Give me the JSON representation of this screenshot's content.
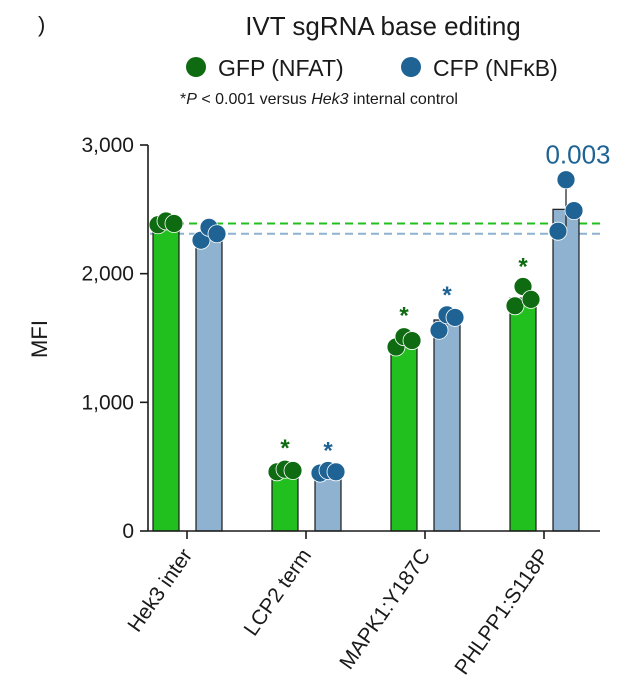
{
  "panel_mark": ")",
  "chart_data": {
    "type": "bar",
    "title": "IVT sgRNA base editing",
    "subtitle_prefix": "*",
    "subtitle_p": "P",
    "subtitle_mid": " < 0.001 versus ",
    "subtitle_gene": "Hek3",
    "subtitle_suffix": " internal control",
    "ylabel": "MFI",
    "xlabel": "",
    "ylim": [
      0,
      3000
    ],
    "yticks": [
      0,
      1000,
      2000,
      3000
    ],
    "ytick_labels": [
      "0",
      "1,000",
      "2,000",
      "3,000"
    ],
    "categories": [
      "Hek3 inter",
      "LCP2 term",
      "MAPK1:Y187C",
      "PHLPP1:S118P"
    ],
    "series": [
      {
        "name": "GFP (NFAT)",
        "color": "#22c01e",
        "dot_color": "#0f6b12",
        "values": [
          2390,
          470,
          1470,
          1810
        ],
        "errors": [
          20,
          20,
          50,
          90
        ],
        "points": [
          [
            2380,
            2410,
            2390
          ],
          [
            460,
            480,
            470
          ],
          [
            1430,
            1510,
            1480
          ],
          [
            1750,
            1900,
            1800
          ]
        ],
        "significance": [
          "",
          "*",
          "*",
          "*"
        ]
      },
      {
        "name": "CFP (NFκB)",
        "color": "#8eb2cf",
        "dot_color": "#1e6394",
        "values": [
          2310,
          460,
          1640,
          2500
        ],
        "errors": [
          30,
          10,
          40,
          170
        ],
        "points": [
          [
            2260,
            2360,
            2310
          ],
          [
            450,
            470,
            460
          ],
          [
            1560,
            1680,
            1660
          ],
          [
            2330,
            2730,
            2490
          ]
        ],
        "significance": [
          "",
          "*",
          "*",
          "0.003"
        ]
      }
    ],
    "reference_lines": [
      {
        "series": "GFP (NFAT)",
        "value": 2390,
        "color": "#22c01e",
        "style": "dashed"
      },
      {
        "series": "CFP (NFκB)",
        "value": 2310,
        "color": "#8eb2cf",
        "style": "dashed"
      }
    ],
    "legend_position": "top",
    "grid": false
  }
}
